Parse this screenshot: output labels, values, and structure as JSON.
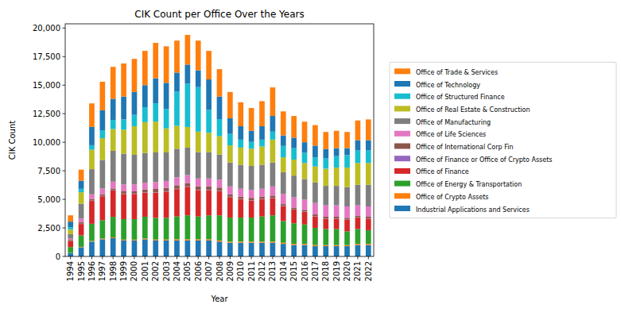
{
  "chart_data": {
    "type": "bar",
    "stacked": true,
    "title": "CIK Count per Office Over the Years",
    "x_label": "Year",
    "y_label": "CIK Count",
    "legend": "right",
    "categories": [
      "1994",
      "1995",
      "1996",
      "1997",
      "1998",
      "1999",
      "2000",
      "2001",
      "2002",
      "2003",
      "2004",
      "2005",
      "2006",
      "2007",
      "2008",
      "2009",
      "2010",
      "2011",
      "2012",
      "2013",
      "2014",
      "2015",
      "2016",
      "2017",
      "2018",
      "2019",
      "2020",
      "2021",
      "2022"
    ],
    "ylim": [
      0,
      20370
    ],
    "yticks": [
      0,
      {
        "value": 2500,
        "label": "2,500"
      },
      {
        "value": 5000,
        "label": "5,000"
      },
      {
        "value": 7500,
        "label": "7,500"
      },
      {
        "value": 10000,
        "label": "10,000"
      },
      {
        "value": 12500,
        "label": "12,500"
      },
      {
        "value": 15000,
        "label": "15,000"
      },
      {
        "value": 17500,
        "label": "17,500"
      },
      {
        "value": 20000,
        "label": "20,000"
      }
    ],
    "series": [
      {
        "name": "Industrial Applications and Services",
        "color": "#1f77b4",
        "values": [
          300,
          800,
          1300,
          1500,
          1600,
          1400,
          1400,
          1500,
          1400,
          1400,
          1400,
          1400,
          1400,
          1400,
          1300,
          1200,
          1200,
          1200,
          1200,
          1200,
          1100,
          1000,
          1000,
          900,
          900,
          900,
          900,
          1000,
          1000
        ]
      },
      {
        "name": "Office of Crypto Assets",
        "color": "#ff7f0e",
        "values": [
          20,
          40,
          60,
          70,
          70,
          70,
          70,
          80,
          80,
          80,
          100,
          100,
          100,
          100,
          100,
          100,
          100,
          100,
          100,
          100,
          100,
          100,
          100,
          100,
          100,
          100,
          100,
          100,
          100
        ]
      },
      {
        "name": "Office of Energy & Transportation",
        "color": "#2ca02c",
        "values": [
          500,
          1000,
          1500,
          1600,
          1800,
          1800,
          1800,
          1900,
          1900,
          1900,
          2000,
          2100,
          2000,
          2100,
          2200,
          2100,
          2100,
          2100,
          2200,
          2300,
          1900,
          1800,
          1700,
          1500,
          1400,
          1400,
          1200,
          1300,
          1200
        ]
      },
      {
        "name": "Office of Finance",
        "color": "#d62728",
        "values": [
          500,
          1000,
          2000,
          2100,
          2300,
          2200,
          2200,
          2100,
          2200,
          2300,
          2400,
          2500,
          2300,
          2200,
          2100,
          1800,
          1600,
          1500,
          1500,
          1500,
          1300,
          1200,
          1100,
          1000,
          900,
          900,
          1000,
          1000,
          1000
        ]
      },
      {
        "name": "Office of Finance or Office of Crypto Assets",
        "color": "#9467bd",
        "values": [
          30,
          30,
          30,
          30,
          30,
          30,
          30,
          30,
          30,
          30,
          30,
          30,
          30,
          30,
          30,
          30,
          30,
          30,
          30,
          30,
          30,
          30,
          30,
          30,
          30,
          30,
          30,
          30,
          30
        ]
      },
      {
        "name": "Office of International Corp Fin",
        "color": "#8c564b",
        "values": [
          100,
          150,
          150,
          150,
          150,
          200,
          200,
          250,
          300,
          300,
          300,
          300,
          300,
          300,
          300,
          200,
          200,
          200,
          200,
          200,
          150,
          150,
          150,
          150,
          150,
          150,
          150,
          150,
          150
        ]
      },
      {
        "name": "Office of Life Sciences",
        "color": "#e377c2",
        "values": [
          100,
          300,
          400,
          500,
          600,
          600,
          600,
          600,
          600,
          600,
          700,
          700,
          700,
          700,
          700,
          700,
          700,
          700,
          700,
          800,
          900,
          900,
          900,
          1000,
          1000,
          1000,
          1000,
          900,
          900
        ]
      },
      {
        "name": "Office of Manufacturing",
        "color": "#7f7f7f",
        "values": [
          400,
          1300,
          2200,
          2500,
          2700,
          2700,
          2600,
          2600,
          2600,
          2500,
          2500,
          2400,
          2300,
          2300,
          2200,
          2100,
          2100,
          2100,
          2100,
          2100,
          1900,
          1900,
          1800,
          1800,
          1700,
          1700,
          1700,
          1800,
          1900
        ]
      },
      {
        "name": "Office of Real Estate & Construction",
        "color": "#bcbd22",
        "values": [
          400,
          1000,
          1700,
          1900,
          1900,
          2100,
          2500,
          2700,
          2700,
          2100,
          2000,
          1800,
          1800,
          1700,
          1600,
          1500,
          1500,
          1500,
          1600,
          2000,
          1300,
          1400,
          1400,
          1400,
          1500,
          1600,
          1700,
          1900,
          1900
        ]
      },
      {
        "name": "Office of Structured Finance",
        "color": "#17becf",
        "values": [
          200,
          300,
          400,
          700,
          800,
          900,
          1000,
          1300,
          1600,
          1700,
          3000,
          3800,
          3900,
          2000,
          1500,
          1000,
          700,
          600,
          600,
          700,
          1000,
          1000,
          900,
          800,
          900,
          1000,
          1100,
          1100,
          1100
        ]
      },
      {
        "name": "Office of Technology",
        "color": "#1f77b4",
        "values": [
          500,
          700,
          1600,
          1750,
          1850,
          2000,
          2000,
          1940,
          2190,
          2290,
          1670,
          1670,
          1470,
          2670,
          1970,
          1370,
          1170,
          970,
          1170,
          1370,
          920,
          920,
          920,
          1020,
          820,
          700,
          600,
          900,
          900
        ]
      },
      {
        "name": "Office of Trade & Services",
        "color": "#ff7f0e",
        "values": [
          550,
          980,
          2060,
          2500,
          2800,
          2900,
          2900,
          3000,
          3100,
          3200,
          2800,
          2600,
          2600,
          2500,
          2400,
          2300,
          2100,
          2000,
          2200,
          2500,
          2100,
          1900,
          1800,
          1800,
          1500,
          1520,
          1420,
          1720,
          1820
        ]
      }
    ]
  }
}
